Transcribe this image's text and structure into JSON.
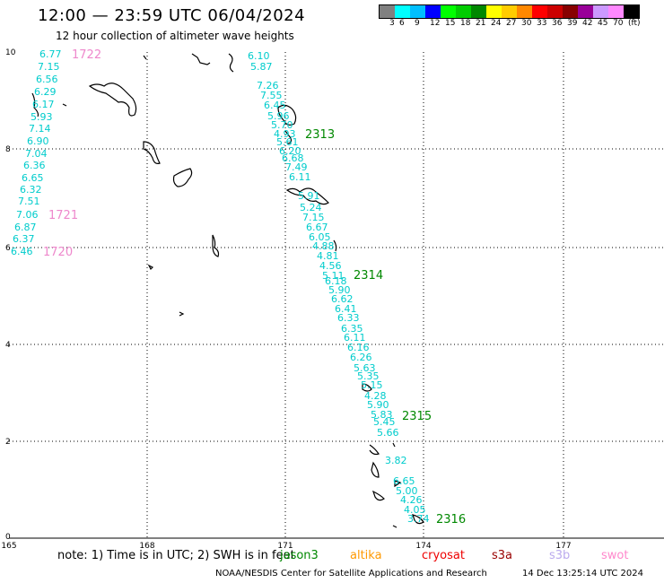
{
  "header": {
    "title": "12:00 — 23:59 UTC 06/04/2024",
    "subtitle": "12 hour collection of altimeter wave heights"
  },
  "legend": {
    "colors": [
      "#808080",
      "#00ffff",
      "#00bfff",
      "#0000ff",
      "#00ff00",
      "#00cc00",
      "#008800",
      "#ffff00",
      "#ffcc00",
      "#ff8800",
      "#ff0000",
      "#cc0000",
      "#880000",
      "#990099",
      "#cc99ff",
      "#ff88ff",
      "#000000"
    ],
    "labels": [
      "3",
      "6",
      "9",
      "12",
      "15",
      "18",
      "21",
      "24",
      "27",
      "30",
      "33",
      "36",
      "39",
      "42",
      "45",
      "70",
      "(ft)"
    ]
  },
  "axes": {
    "x_ticks": [
      "165",
      "168",
      "171",
      "174",
      "177"
    ],
    "y_ticks": [
      "10",
      "8",
      "6",
      "4",
      "2",
      "0"
    ]
  },
  "track_labels": {
    "color": "#00cccc",
    "west": [
      "6.77",
      "7.15",
      "6.56",
      "6.29",
      "6.17",
      "5.93",
      "7.14",
      "6.90",
      "7.04",
      "6.36",
      "6.65",
      "6.32",
      "7.51",
      "7.06",
      "6.87",
      "6.37",
      "6.46"
    ],
    "main": [
      "6.10",
      "5.87",
      "7.26",
      "7.55",
      "6.45",
      "5.96",
      "5.70",
      "4.93",
      "5.61",
      "6.20",
      "6.68",
      "7.49",
      "6.11",
      "5.91",
      "5.24",
      "7.15",
      "6.67",
      "6.05",
      "4.88",
      "4.81",
      "4.56",
      "5.11",
      "6.18",
      "5.90",
      "6.62",
      "6.41",
      "6.33",
      "6.35",
      "6.11",
      "6.16",
      "6.26",
      "5.63",
      "5.35",
      "5.15",
      "4.28",
      "5.90",
      "5.83",
      "5.45",
      "5.66",
      "3.82",
      "6.65",
      "5.00",
      "4.26",
      "4.05",
      "3.74"
    ]
  },
  "pass_labels": [
    {
      "text": "1722",
      "color": "#ee88cc"
    },
    {
      "text": "1721",
      "color": "#ee88cc"
    },
    {
      "text": "1720",
      "color": "#ee88cc"
    },
    {
      "text": "2313",
      "color": "#008800"
    },
    {
      "text": "2314",
      "color": "#008800"
    },
    {
      "text": "2315",
      "color": "#008800"
    },
    {
      "text": "2316",
      "color": "#008800"
    }
  ],
  "footer": {
    "note": "note:  1) Time is in UTC; 2) SWH is in feet",
    "satellites": [
      {
        "name": "jason3",
        "color": "#008800"
      },
      {
        "name": "altika",
        "color": "#ff9900"
      },
      {
        "name": "cryosat",
        "color": "#ee0000"
      },
      {
        "name": "s3a",
        "color": "#990000"
      },
      {
        "name": "s3b",
        "color": "#bbaaee"
      },
      {
        "name": "swot",
        "color": "#ff88cc"
      }
    ],
    "credit": "NOAA/NESDIS Center for Satellite Applications and Research",
    "timestamp": "14 Dec 13:25:14 UTC 2024"
  }
}
